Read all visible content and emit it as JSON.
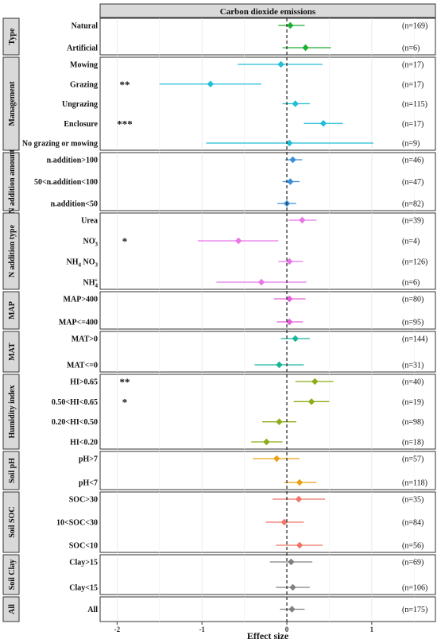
{
  "chart_data": {
    "type": "forest",
    "title": "Carbon dioxide emissions",
    "xlabel": "Effect size",
    "xlim": [
      -2.2,
      1.75
    ],
    "xticks": [
      -2,
      -1,
      0,
      1
    ],
    "reference_line": 0,
    "grid": true,
    "groups": [
      {
        "name": "Type",
        "color": "#1fae32",
        "rows": [
          {
            "label": "Natural",
            "mean": 0.04,
            "lo": -0.1,
            "hi": 0.21,
            "n": "(n=169)",
            "sig": ""
          },
          {
            "label": "Artificial",
            "mean": 0.22,
            "lo": -0.05,
            "hi": 0.52,
            "n": "(n=6)",
            "sig": ""
          }
        ]
      },
      {
        "name": "Management",
        "color": "#22bdd6",
        "rows": [
          {
            "label": "Mowing",
            "mean": -0.07,
            "lo": -0.58,
            "hi": 0.42,
            "n": "(n=17)",
            "sig": ""
          },
          {
            "label": "Grazing",
            "mean": -0.9,
            "lo": -1.5,
            "hi": -0.3,
            "n": "(n=17)",
            "sig": "**"
          },
          {
            "label": "Ungrazing",
            "mean": 0.1,
            "lo": -0.05,
            "hi": 0.27,
            "n": "(n=115)",
            "sig": ""
          },
          {
            "label": "Enclosure",
            "mean": 0.43,
            "lo": 0.2,
            "hi": 0.66,
            "n": "(n=17)",
            "sig": "***"
          },
          {
            "label": "No grazing or mowing",
            "mean": 0.03,
            "lo": -0.95,
            "hi": 1.02,
            "n": "(n=9)",
            "sig": ""
          }
        ]
      },
      {
        "name": "N addition amount",
        "color": "#3b8fd8",
        "rows": [
          {
            "label": "n.addition>100",
            "mean": 0.07,
            "lo": -0.02,
            "hi": 0.18,
            "n": "(n=46)",
            "sig": ""
          },
          {
            "label": "50<n.addition<100",
            "mean": 0.04,
            "lo": -0.05,
            "hi": 0.15,
            "n": "(n=47)",
            "sig": ""
          },
          {
            "label": "n.addition<50",
            "mean": 0.0,
            "lo": -0.11,
            "hi": 0.11,
            "n": "(n=82)",
            "sig": ""
          }
        ]
      },
      {
        "name": "N addition type",
        "color": "#e776e6",
        "rows": [
          {
            "label": "Urea",
            "mean": 0.18,
            "lo": 0.02,
            "hi": 0.35,
            "n": "(n=39)",
            "sig": ""
          },
          {
            "label": "NO3-",
            "mean": -0.57,
            "lo": -1.05,
            "hi": -0.1,
            "n": "(n=4)",
            "sig": "*"
          },
          {
            "label": "NH4 NO3",
            "mean": 0.03,
            "lo": -0.1,
            "hi": 0.19,
            "n": "(n=126)",
            "sig": ""
          },
          {
            "label": "NH4+",
            "mean": -0.3,
            "lo": -0.83,
            "hi": 0.23,
            "n": "(n=6)",
            "sig": ""
          }
        ]
      },
      {
        "name": "MAP",
        "color": "#e55fd9",
        "rows": [
          {
            "label": "MAP>400",
            "mean": 0.03,
            "lo": -0.15,
            "hi": 0.22,
            "n": "(n=80)",
            "sig": ""
          },
          {
            "label": "MAP<=400",
            "mean": 0.03,
            "lo": -0.12,
            "hi": 0.19,
            "n": "(n=95)",
            "sig": ""
          }
        ]
      },
      {
        "name": "MAT",
        "color": "#17b596",
        "rows": [
          {
            "label": "MAT>0",
            "mean": 0.1,
            "lo": -0.07,
            "hi": 0.27,
            "n": "(n=144)",
            "sig": ""
          },
          {
            "label": "MAT<=0",
            "mean": -0.09,
            "lo": -0.38,
            "hi": 0.2,
            "n": "(n=31)",
            "sig": ""
          }
        ]
      },
      {
        "name": "Humidity index",
        "color": "#8cad18",
        "rows": [
          {
            "label": "HI>0.65",
            "mean": 0.33,
            "lo": 0.1,
            "hi": 0.55,
            "n": "(n=40)",
            "sig": "**"
          },
          {
            "label": "0.50<HI<0.65",
            "mean": 0.29,
            "lo": 0.08,
            "hi": 0.5,
            "n": "(n=19)",
            "sig": "*"
          },
          {
            "label": "0.20<HI<0.50",
            "mean": -0.09,
            "lo": -0.29,
            "hi": 0.11,
            "n": "(n=98)",
            "sig": ""
          },
          {
            "label": "HI<0.20",
            "mean": -0.24,
            "lo": -0.42,
            "hi": -0.05,
            "n": "(n=18)",
            "sig": ""
          }
        ]
      },
      {
        "name": "Soil pH",
        "color": "#e9a214",
        "rows": [
          {
            "label": "pH>7",
            "mean": -0.12,
            "lo": -0.4,
            "hi": 0.15,
            "n": "(n=57)",
            "sig": ""
          },
          {
            "label": "pH<7",
            "mean": 0.15,
            "lo": -0.03,
            "hi": 0.35,
            "n": "(n=118)",
            "sig": ""
          }
        ]
      },
      {
        "name": "Soil SOC",
        "color": "#ee7568",
        "rows": [
          {
            "label": "SOC>30",
            "mean": 0.14,
            "lo": -0.17,
            "hi": 0.45,
            "n": "(n=35)",
            "sig": ""
          },
          {
            "label": "10<SOC<30",
            "mean": -0.03,
            "lo": -0.25,
            "hi": 0.2,
            "n": "(n=84)",
            "sig": ""
          },
          {
            "label": "SOC<10",
            "mean": 0.15,
            "lo": -0.13,
            "hi": 0.42,
            "n": "(n=56)",
            "sig": ""
          }
        ]
      },
      {
        "name": "Soil Clay",
        "color": "#808080",
        "rows": [
          {
            "label": "Clay>15",
            "mean": 0.05,
            "lo": -0.2,
            "hi": 0.3,
            "n": "(n=69)",
            "sig": ""
          },
          {
            "label": "Clay<15",
            "mean": 0.07,
            "lo": -0.13,
            "hi": 0.27,
            "n": "(n=106)",
            "sig": ""
          }
        ]
      },
      {
        "name": "All",
        "color": "#808080",
        "rows": [
          {
            "label": "All",
            "mean": 0.06,
            "lo": -0.08,
            "hi": 0.21,
            "n": "(n=175)",
            "sig": ""
          }
        ]
      }
    ]
  }
}
